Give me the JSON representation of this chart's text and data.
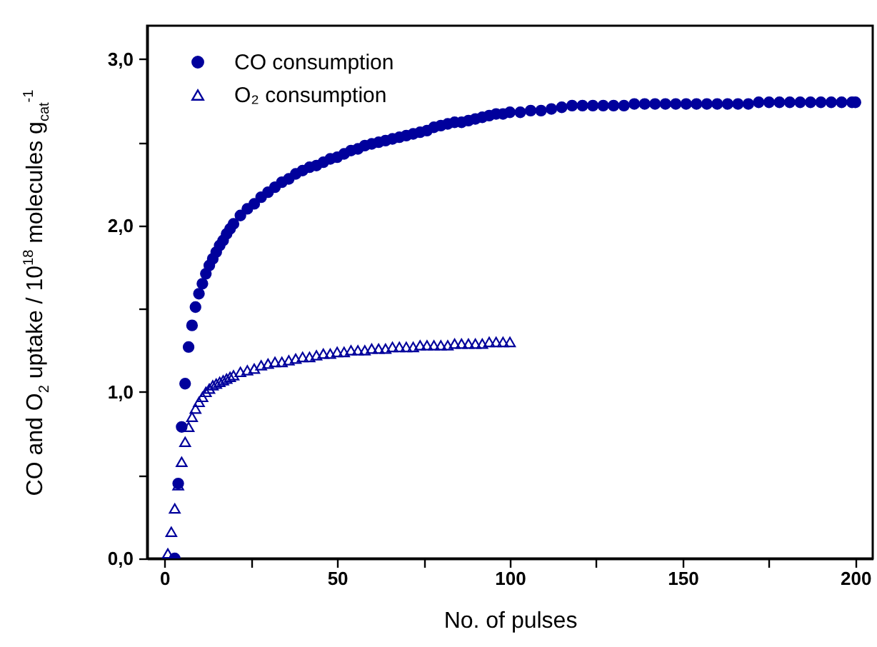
{
  "chart_data": {
    "type": "scatter",
    "xlabel": "No. of pulses",
    "ylabel": "CO and O$_{2}$ uptake / 10$^{18}$ molecules g$_{cat}$$^{-1}$",
    "xlim": [
      -5,
      205
    ],
    "ylim": [
      0,
      3.2
    ],
    "xticks": [
      0,
      {
        "value": 25,
        "label": null
      },
      50,
      {
        "value": 75,
        "label": null
      },
      100,
      {
        "value": 125,
        "label": null
      },
      150,
      {
        "value": 175,
        "label": null
      },
      200
    ],
    "yticks": [
      {
        "value": 0,
        "label": "0,0"
      },
      {
        "value": 0.5,
        "label": null
      },
      {
        "value": 1,
        "label": "1,0"
      },
      {
        "value": 1.5,
        "label": null
      },
      {
        "value": 2,
        "label": "2,0"
      },
      {
        "value": 2.5,
        "label": null
      },
      {
        "value": 3,
        "label": "3,0"
      }
    ],
    "legend": "top left",
    "series": [
      {
        "name": "CO consumption",
        "color": "#00009c",
        "marker": "circle",
        "x": [
          3,
          4,
          5,
          6,
          7,
          8,
          9,
          10,
          11,
          12,
          13,
          14,
          15,
          16,
          17,
          18,
          19,
          20,
          22,
          24,
          26,
          28,
          30,
          32,
          34,
          36,
          38,
          40,
          42,
          44,
          46,
          48,
          50,
          52,
          54,
          56,
          58,
          60,
          62,
          64,
          66,
          68,
          70,
          72,
          74,
          76,
          78,
          80,
          82,
          84,
          86,
          88,
          90,
          92,
          94,
          96,
          98,
          100,
          103,
          106,
          109,
          112,
          115,
          118,
          121,
          124,
          127,
          130,
          133,
          136,
          139,
          142,
          145,
          148,
          151,
          154,
          157,
          160,
          163,
          166,
          169,
          172,
          175,
          178,
          181,
          184,
          187,
          190,
          193,
          196,
          199,
          200
        ],
        "values": [
          0.0,
          0.45,
          0.79,
          1.05,
          1.27,
          1.4,
          1.51,
          1.59,
          1.65,
          1.71,
          1.76,
          1.8,
          1.84,
          1.88,
          1.91,
          1.95,
          1.98,
          2.01,
          2.06,
          2.1,
          2.13,
          2.17,
          2.2,
          2.23,
          2.26,
          2.28,
          2.31,
          2.33,
          2.35,
          2.36,
          2.38,
          2.4,
          2.41,
          2.43,
          2.45,
          2.46,
          2.48,
          2.49,
          2.5,
          2.51,
          2.52,
          2.53,
          2.54,
          2.55,
          2.56,
          2.57,
          2.59,
          2.6,
          2.61,
          2.62,
          2.62,
          2.63,
          2.64,
          2.65,
          2.66,
          2.67,
          2.67,
          2.68,
          2.68,
          2.69,
          2.69,
          2.7,
          2.71,
          2.72,
          2.72,
          2.72,
          2.72,
          2.72,
          2.72,
          2.73,
          2.73,
          2.73,
          2.73,
          2.73,
          2.73,
          2.73,
          2.73,
          2.73,
          2.73,
          2.73,
          2.73,
          2.74,
          2.74,
          2.74,
          2.74,
          2.74,
          2.74,
          2.74,
          2.74,
          2.74,
          2.74,
          2.74
        ]
      },
      {
        "name": "O₂ consumption",
        "color": "#00009c",
        "marker": "triangle",
        "x": [
          1,
          2,
          3,
          4,
          5,
          6,
          7,
          8,
          9,
          10,
          11,
          12,
          13,
          14,
          15,
          16,
          17,
          18,
          19,
          20,
          22,
          24,
          26,
          28,
          30,
          32,
          34,
          36,
          38,
          40,
          42,
          44,
          46,
          48,
          50,
          52,
          54,
          56,
          58,
          60,
          62,
          64,
          66,
          68,
          70,
          72,
          74,
          76,
          78,
          80,
          82,
          84,
          86,
          88,
          90,
          92,
          94,
          96,
          98,
          100
        ],
        "values": [
          0.03,
          0.16,
          0.3,
          0.44,
          0.58,
          0.7,
          0.79,
          0.85,
          0.9,
          0.94,
          0.97,
          1.0,
          1.02,
          1.04,
          1.05,
          1.06,
          1.07,
          1.08,
          1.09,
          1.1,
          1.12,
          1.13,
          1.14,
          1.16,
          1.17,
          1.18,
          1.18,
          1.19,
          1.2,
          1.21,
          1.21,
          1.22,
          1.23,
          1.23,
          1.24,
          1.24,
          1.25,
          1.25,
          1.25,
          1.26,
          1.26,
          1.26,
          1.27,
          1.27,
          1.27,
          1.27,
          1.28,
          1.28,
          1.28,
          1.28,
          1.28,
          1.29,
          1.29,
          1.29,
          1.29,
          1.29,
          1.3,
          1.3,
          1.3,
          1.3
        ]
      }
    ]
  }
}
